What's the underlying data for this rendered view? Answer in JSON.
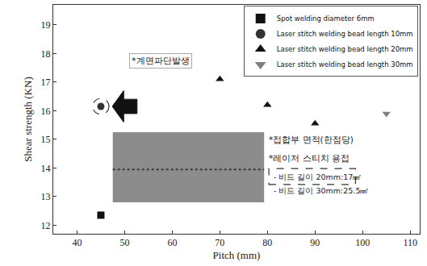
{
  "chart_data": {
    "type": "scatter",
    "xlabel": "Pitch (mm)",
    "ylabel": "Shear strength (KN)",
    "series": [
      {
        "name": "Spot welding diameter 6mm",
        "color": "#111111",
        "marker": "square",
        "x": [
          45
        ],
        "values": [
          12.35
        ]
      },
      {
        "name": "Laser stitch welding bead length 10mm",
        "color": "#333333",
        "marker": "circle",
        "x": [
          45
        ],
        "values": [
          16.15
        ]
      },
      {
        "name": "Laser stitch welding bead length 20mm",
        "color": "#111111",
        "marker": "triangle-up",
        "x": [
          70,
          80,
          90
        ],
        "values": [
          17.1,
          16.2,
          15.55
        ]
      },
      {
        "name": "Laser stitch welding bead length 30mm",
        "color": "#808080",
        "marker": "triangle-down",
        "x": [
          105
        ],
        "values": [
          15.9
        ]
      }
    ],
    "xlim": [
      35,
      112
    ],
    "xticks": [
      40,
      50,
      60,
      70,
      80,
      90,
      100,
      110
    ],
    "ylim": [
      11.7,
      19.7
    ],
    "yticks": [
      12,
      13,
      14,
      15,
      16,
      17,
      18,
      19
    ],
    "grid": false,
    "legend": "upper right",
    "annotations": [
      "*계면파단발생",
      "*접합부 면적(한점당)",
      "*레이저 스티치 용접",
      "- 비드 길이 20mm:17㎟",
      "- 비드 길이 30mm:25.5㎟"
    ]
  }
}
